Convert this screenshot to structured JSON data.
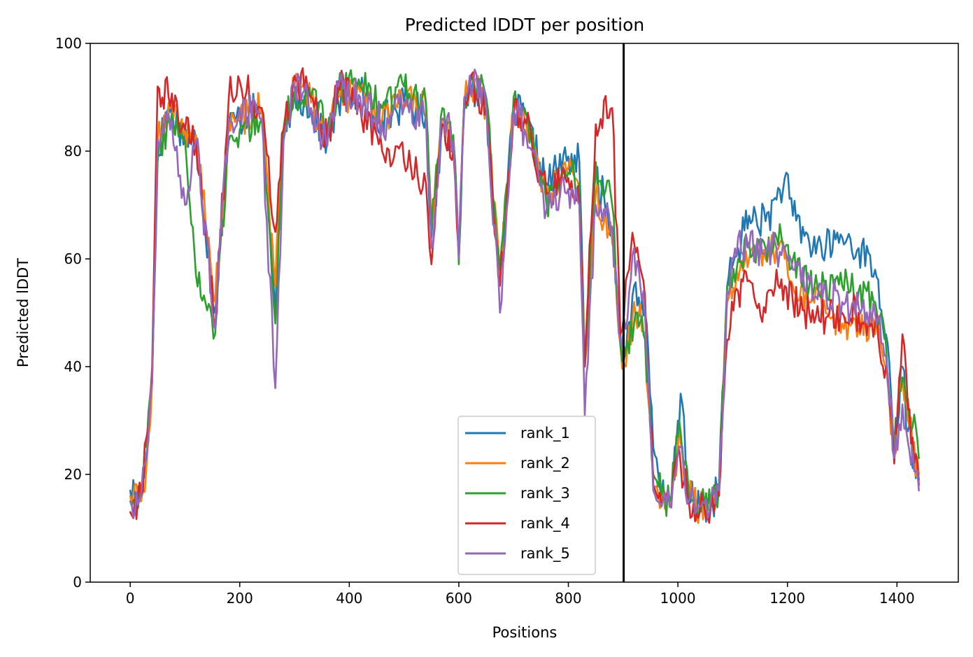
{
  "chart_data": {
    "type": "line",
    "title": "Predicted lDDT per position",
    "xlabel": "Positions",
    "ylabel": "Predicted lDDT",
    "xlim": [
      -73,
      1512
    ],
    "ylim": [
      0,
      100
    ],
    "xticks": [
      0,
      200,
      400,
      600,
      800,
      1000,
      1200,
      1400
    ],
    "yticks": [
      0,
      20,
      40,
      60,
      80,
      100
    ],
    "vline": 901,
    "legend_position": "lower center",
    "series": [
      {
        "name": "rank_1",
        "color": "#1f77b4",
        "x": [
          0,
          20,
          30,
          40,
          50,
          70,
          100,
          120,
          155,
          180,
          200,
          240,
          265,
          280,
          300,
          330,
          360,
          380,
          400,
          420,
          460,
          500,
          540,
          550,
          570,
          590,
          600,
          610,
          620,
          650,
          675,
          700,
          720,
          760,
          800,
          820,
          830,
          850,
          880,
          895,
          905,
          920,
          940,
          955,
          970,
          985,
          1000,
          1005,
          1020,
          1040,
          1060,
          1075,
          1090,
          1110,
          1130,
          1160,
          1180,
          1195,
          1210,
          1240,
          1270,
          1300,
          1330,
          1360,
          1380,
          1395,
          1410,
          1420,
          1440
        ],
        "y": [
          17,
          16,
          24,
          38,
          80,
          88,
          83,
          82,
          50,
          85,
          86,
          88,
          50,
          82,
          91,
          88,
          82,
          89,
          90,
          91,
          86,
          89,
          87,
          64,
          85,
          82,
          60,
          88,
          92,
          89,
          55,
          88,
          86,
          74,
          79,
          78,
          40,
          76,
          66,
          46,
          42,
          55,
          50,
          25,
          16,
          15,
          30,
          35,
          16,
          14,
          14,
          18,
          55,
          62,
          68,
          67,
          71,
          75,
          68,
          63,
          62,
          64,
          62,
          58,
          46,
          25,
          40,
          28,
          19
        ]
      },
      {
        "name": "rank_2",
        "color": "#ff7f0e",
        "x": [
          0,
          20,
          30,
          40,
          50,
          70,
          100,
          120,
          155,
          180,
          200,
          240,
          265,
          280,
          300,
          330,
          360,
          380,
          400,
          420,
          460,
          500,
          540,
          550,
          570,
          590,
          600,
          610,
          620,
          650,
          675,
          700,
          720,
          760,
          800,
          820,
          830,
          850,
          880,
          895,
          905,
          920,
          940,
          955,
          970,
          985,
          1000,
          1005,
          1020,
          1040,
          1060,
          1075,
          1090,
          1110,
          1130,
          1160,
          1180,
          1195,
          1210,
          1240,
          1270,
          1300,
          1330,
          1360,
          1380,
          1395,
          1410,
          1420,
          1440
        ],
        "y": [
          16,
          15,
          22,
          37,
          81,
          89,
          84,
          83,
          52,
          86,
          86,
          88,
          55,
          83,
          92,
          89,
          83,
          90,
          90,
          91,
          86,
          89,
          88,
          66,
          86,
          82,
          62,
          89,
          92,
          89,
          57,
          88,
          86,
          71,
          77,
          73,
          40,
          72,
          63,
          44,
          40,
          52,
          46,
          18,
          15,
          14,
          25,
          26,
          16,
          14,
          14,
          17,
          52,
          56,
          60,
          60,
          62,
          60,
          55,
          52,
          50,
          48,
          47,
          46,
          40,
          24,
          38,
          30,
          20
        ]
      },
      {
        "name": "rank_3",
        "color": "#2ca02c",
        "x": [
          0,
          20,
          30,
          40,
          50,
          70,
          100,
          120,
          155,
          180,
          200,
          240,
          265,
          280,
          300,
          330,
          360,
          380,
          400,
          420,
          460,
          500,
          540,
          550,
          570,
          590,
          600,
          610,
          620,
          650,
          675,
          700,
          720,
          760,
          800,
          820,
          830,
          850,
          880,
          895,
          905,
          920,
          940,
          955,
          970,
          985,
          1000,
          1005,
          1020,
          1040,
          1060,
          1075,
          1090,
          1110,
          1130,
          1160,
          1180,
          1195,
          1210,
          1240,
          1270,
          1300,
          1330,
          1360,
          1380,
          1395,
          1410,
          1420,
          1440
        ],
        "y": [
          15,
          18,
          25,
          38,
          78,
          86,
          82,
          57,
          46,
          82,
          84,
          86,
          48,
          84,
          91,
          90,
          84,
          91,
          94,
          92,
          88,
          92,
          89,
          65,
          88,
          83,
          59,
          90,
          93,
          90,
          58,
          90,
          88,
          70,
          76,
          74,
          40,
          78,
          70,
          44,
          43,
          48,
          45,
          20,
          16,
          15,
          27,
          28,
          16,
          14,
          14,
          18,
          55,
          60,
          63,
          62,
          64,
          62,
          60,
          55,
          56,
          55,
          54,
          52,
          44,
          25,
          38,
          34,
          23
        ]
      },
      {
        "name": "rank_4",
        "color": "#d62728",
        "x": [
          0,
          20,
          30,
          40,
          50,
          70,
          100,
          120,
          155,
          180,
          200,
          240,
          265,
          280,
          300,
          330,
          360,
          380,
          400,
          420,
          460,
          500,
          540,
          550,
          570,
          590,
          600,
          610,
          620,
          650,
          675,
          700,
          720,
          760,
          800,
          820,
          830,
          850,
          880,
          895,
          905,
          920,
          940,
          955,
          970,
          985,
          1000,
          1005,
          1020,
          1040,
          1060,
          1075,
          1090,
          1110,
          1130,
          1160,
          1180,
          1195,
          1210,
          1240,
          1270,
          1300,
          1330,
          1360,
          1380,
          1395,
          1410,
          1420,
          1440
        ],
        "y": [
          13,
          16,
          27,
          40,
          92,
          90,
          84,
          82,
          48,
          90,
          93,
          88,
          65,
          84,
          94,
          90,
          82,
          93,
          90,
          88,
          80,
          78,
          74,
          59,
          85,
          80,
          61,
          90,
          92,
          88,
          55,
          87,
          86,
          72,
          75,
          70,
          40,
          85,
          88,
          46,
          56,
          63,
          53,
          18,
          14,
          14,
          24,
          22,
          15,
          13,
          14,
          16,
          45,
          54,
          56,
          50,
          58,
          55,
          52,
          50,
          49,
          50,
          50,
          48,
          40,
          22,
          46,
          32,
          18
        ]
      },
      {
        "name": "rank_5",
        "color": "#9467bd",
        "x": [
          0,
          20,
          30,
          40,
          50,
          70,
          100,
          120,
          155,
          180,
          200,
          240,
          265,
          280,
          300,
          330,
          360,
          380,
          400,
          420,
          460,
          500,
          540,
          550,
          570,
          590,
          600,
          610,
          620,
          650,
          675,
          700,
          720,
          760,
          800,
          820,
          830,
          850,
          880,
          895,
          905,
          920,
          940,
          955,
          970,
          985,
          1000,
          1005,
          1020,
          1040,
          1060,
          1075,
          1090,
          1110,
          1130,
          1160,
          1180,
          1195,
          1210,
          1240,
          1270,
          1300,
          1330,
          1360,
          1380,
          1395,
          1410,
          1420,
          1440
        ],
        "y": [
          15,
          16,
          23,
          37,
          82,
          87,
          70,
          82,
          47,
          86,
          88,
          86,
          36,
          82,
          92,
          88,
          81,
          92,
          90,
          90,
          85,
          88,
          86,
          62,
          86,
          82,
          60,
          90,
          94,
          88,
          50,
          88,
          84,
          69,
          73,
          70,
          31,
          70,
          66,
          45,
          47,
          62,
          50,
          17,
          14,
          14,
          24,
          25,
          15,
          14,
          15,
          17,
          54,
          64,
          62,
          61,
          62,
          62,
          58,
          56,
          54,
          52,
          51,
          50,
          42,
          23,
          33,
          26,
          17
        ]
      }
    ]
  }
}
